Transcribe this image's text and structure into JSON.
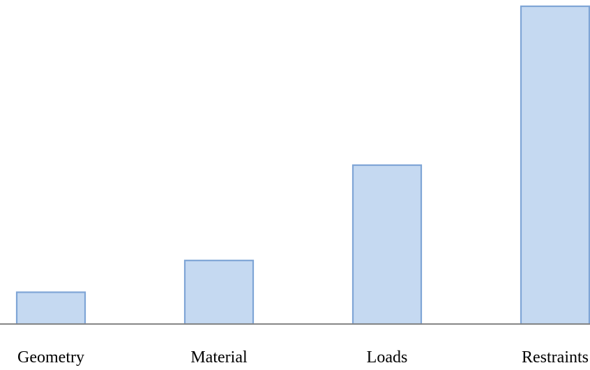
{
  "chart_data": {
    "type": "bar",
    "categories": [
      "Geometry",
      "Material",
      "Loads",
      "Restraints"
    ],
    "values": [
      10,
      20,
      50,
      100
    ],
    "ylim": [
      0,
      100
    ],
    "title": "",
    "xlabel": "",
    "ylabel": "",
    "grid": false,
    "legend": "none",
    "colors": {
      "bar_fill": "#c5d9f1",
      "bar_stroke": "#7fa5d6",
      "axis": "#868686",
      "text": "#000000"
    }
  }
}
